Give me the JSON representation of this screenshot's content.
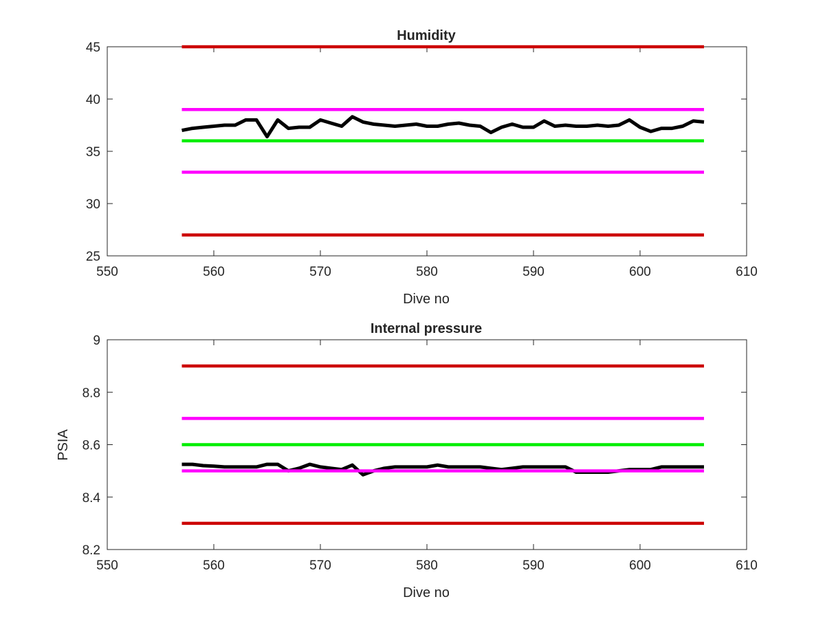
{
  "chart_data": [
    {
      "type": "line",
      "title": "Humidity",
      "xlabel": "Dive no",
      "ylabel": "",
      "xlim": [
        550,
        610
      ],
      "ylim": [
        25,
        45
      ],
      "xticks": [
        "550",
        "560",
        "570",
        "580",
        "590",
        "600",
        "610"
      ],
      "yticks": [
        "25",
        "30",
        "35",
        "40",
        "45"
      ],
      "grid": false,
      "series": [
        {
          "color": "#cc0000",
          "x": [
            557,
            606
          ],
          "values": [
            45,
            45
          ]
        },
        {
          "color": "#cc0000",
          "x": [
            557,
            606
          ],
          "values": [
            27,
            27
          ]
        },
        {
          "color": "#ff00ff",
          "x": [
            557,
            606
          ],
          "values": [
            39,
            39
          ]
        },
        {
          "color": "#ff00ff",
          "x": [
            557,
            606
          ],
          "values": [
            33,
            33
          ]
        },
        {
          "color": "#00ee00",
          "x": [
            557,
            606
          ],
          "values": [
            36,
            36
          ]
        },
        {
          "color": "#000000",
          "x": [
            557,
            558,
            559,
            560,
            561,
            562,
            563,
            564,
            565,
            566,
            567,
            568,
            569,
            570,
            571,
            572,
            573,
            574,
            575,
            576,
            577,
            578,
            579,
            580,
            581,
            582,
            583,
            584,
            585,
            586,
            587,
            588,
            589,
            590,
            591,
            592,
            593,
            594,
            595,
            596,
            597,
            598,
            599,
            600,
            601,
            602,
            603,
            604,
            605,
            606
          ],
          "values": [
            37.0,
            37.2,
            37.3,
            37.4,
            37.5,
            37.5,
            38.0,
            38.0,
            36.4,
            38.0,
            37.2,
            37.3,
            37.3,
            38.0,
            37.7,
            37.4,
            38.3,
            37.8,
            37.6,
            37.5,
            37.4,
            37.5,
            37.6,
            37.4,
            37.4,
            37.6,
            37.7,
            37.5,
            37.4,
            36.8,
            37.3,
            37.6,
            37.3,
            37.3,
            37.9,
            37.4,
            37.5,
            37.4,
            37.4,
            37.5,
            37.4,
            37.5,
            38.0,
            37.3,
            36.9,
            37.2,
            37.2,
            37.4,
            37.9,
            37.8
          ]
        }
      ]
    },
    {
      "type": "line",
      "title": "Internal pressure",
      "xlabel": "Dive no",
      "ylabel": "PSIA",
      "xlim": [
        550,
        610
      ],
      "ylim": [
        8.2,
        9
      ],
      "xticks": [
        "550",
        "560",
        "570",
        "580",
        "590",
        "600",
        "610"
      ],
      "yticks": [
        "8.2",
        "8.4",
        "8.6",
        "8.8",
        "9"
      ],
      "grid": false,
      "series": [
        {
          "color": "#cc0000",
          "x": [
            557,
            606
          ],
          "values": [
            8.9,
            8.9
          ]
        },
        {
          "color": "#cc0000",
          "x": [
            557,
            606
          ],
          "values": [
            8.3,
            8.3
          ]
        },
        {
          "color": "#ff00ff",
          "x": [
            557,
            606
          ],
          "values": [
            8.7,
            8.7
          ]
        },
        {
          "color": "#00ee00",
          "x": [
            557,
            606
          ],
          "values": [
            8.6,
            8.6
          ]
        },
        {
          "color": "#000000",
          "x": [
            557,
            558,
            559,
            560,
            561,
            562,
            563,
            564,
            565,
            566,
            567,
            568,
            569,
            570,
            571,
            572,
            573,
            574,
            575,
            576,
            577,
            578,
            579,
            580,
            581,
            582,
            583,
            584,
            585,
            586,
            587,
            588,
            589,
            590,
            591,
            592,
            593,
            594,
            595,
            596,
            597,
            598,
            599,
            600,
            601,
            602,
            603,
            604,
            605,
            606
          ],
          "values": [
            8.525,
            8.525,
            8.52,
            8.518,
            8.515,
            8.515,
            8.515,
            8.515,
            8.525,
            8.525,
            8.5,
            8.51,
            8.525,
            8.515,
            8.51,
            8.505,
            8.522,
            8.485,
            8.5,
            8.51,
            8.515,
            8.515,
            8.515,
            8.515,
            8.522,
            8.515,
            8.515,
            8.515,
            8.515,
            8.51,
            8.505,
            8.51,
            8.515,
            8.515,
            8.515,
            8.515,
            8.515,
            8.495,
            8.495,
            8.495,
            8.495,
            8.5,
            8.505,
            8.505,
            8.505,
            8.515,
            8.515,
            8.515,
            8.515,
            8.515
          ]
        },
        {
          "color": "#ff00ff",
          "x": [
            557,
            606
          ],
          "values": [
            8.5,
            8.5
          ]
        }
      ]
    }
  ]
}
